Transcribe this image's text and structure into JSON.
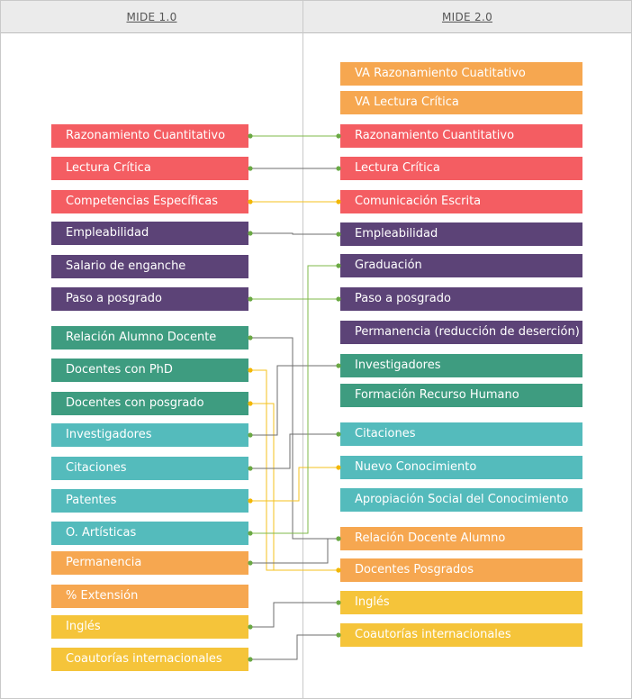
{
  "header": {
    "left_title": "MIDE 1.0",
    "right_title": "MIDE 2.0"
  },
  "colors": {
    "red": "#f45d62",
    "purple": "#5c4377",
    "teal_dark": "#3e9c80",
    "teal_light": "#54bbbc",
    "orange": "#f6a750",
    "yellow": "#f5c43a",
    "line_green": "#7fb84a",
    "line_yellow": "#f4c21c",
    "line_gray": "#6e6e6e",
    "node_green": "#6aa843",
    "node_yellow": "#f2b705"
  },
  "left_items": [
    {
      "label": "Razonamiento Cuantitativo",
      "color": "red"
    },
    {
      "label": "Lectura Crítica",
      "color": "red"
    },
    {
      "label": "Competencias Específicas",
      "color": "red"
    },
    {
      "label": "Empleabilidad",
      "color": "purple"
    },
    {
      "label": "Salario de enganche",
      "color": "purple"
    },
    {
      "label": "Paso a posgrado",
      "color": "purple"
    },
    {
      "label": "Relación Alumno Docente",
      "color": "teal_dark"
    },
    {
      "label": "Docentes con PhD",
      "color": "teal_dark"
    },
    {
      "label": "Docentes con posgrado",
      "color": "teal_dark"
    },
    {
      "label": "Investigadores",
      "color": "teal_light"
    },
    {
      "label": "Citaciones",
      "color": "teal_light"
    },
    {
      "label": "Patentes",
      "color": "teal_light"
    },
    {
      "label": "O. Artísticas",
      "color": "teal_light"
    },
    {
      "label": "Permanencia",
      "color": "orange"
    },
    {
      "label": "% Extensión",
      "color": "orange"
    },
    {
      "label": "Inglés",
      "color": "yellow"
    },
    {
      "label": "Coautorías internacionales",
      "color": "yellow"
    }
  ],
  "right_items": [
    {
      "label": "VA Razonamiento Cuatitativo",
      "color": "orange"
    },
    {
      "label": "VA Lectura Crítica",
      "color": "orange"
    },
    {
      "label": "Razonamiento Cuantitativo",
      "color": "red"
    },
    {
      "label": "Lectura Crítica",
      "color": "red"
    },
    {
      "label": "Comunicación Escrita",
      "color": "red"
    },
    {
      "label": "Empleabilidad",
      "color": "purple"
    },
    {
      "label": "Graduación",
      "color": "purple"
    },
    {
      "label": "Paso a posgrado",
      "color": "purple"
    },
    {
      "label": "Permanencia (reducción de deserción)",
      "color": "purple"
    },
    {
      "label": "Investigadores",
      "color": "teal_dark"
    },
    {
      "label": "Formación Recurso Humano",
      "color": "teal_dark"
    },
    {
      "label": "Citaciones",
      "color": "teal_light"
    },
    {
      "label": "Nuevo Conocimiento",
      "color": "teal_light"
    },
    {
      "label": "Apropiación Social del Conocimiento",
      "color": "teal_light"
    },
    {
      "label": "Relación Docente Alumno",
      "color": "orange"
    },
    {
      "label": "Docentes Posgrados",
      "color": "orange"
    },
    {
      "label": "Inglés",
      "color": "yellow"
    },
    {
      "label": "Coautorías internacionales",
      "color": "yellow"
    }
  ],
  "connections": [
    {
      "from": 0,
      "to": 2,
      "style": "green"
    },
    {
      "from": 1,
      "to": 3,
      "style": "gray"
    },
    {
      "from": 2,
      "to": 4,
      "style": "yellow"
    },
    {
      "from": 3,
      "to": 5,
      "style": "gray"
    },
    {
      "from": 5,
      "to": 7,
      "style": "green"
    },
    {
      "from": 6,
      "to": 14,
      "style": "gray"
    },
    {
      "from": 7,
      "to": 15,
      "style": "yellow"
    },
    {
      "from": 8,
      "to": 15,
      "style": "yellow"
    },
    {
      "from": 9,
      "to": 9,
      "style": "gray"
    },
    {
      "from": 10,
      "to": 11,
      "style": "gray"
    },
    {
      "from": 11,
      "to": 12,
      "style": "yellow"
    },
    {
      "from": 12,
      "to": 6,
      "style": "green"
    },
    {
      "from": 13,
      "to": 14,
      "style": "gray"
    },
    {
      "from": 15,
      "to": 16,
      "style": "gray"
    },
    {
      "from": 16,
      "to": 17,
      "style": "gray"
    }
  ]
}
